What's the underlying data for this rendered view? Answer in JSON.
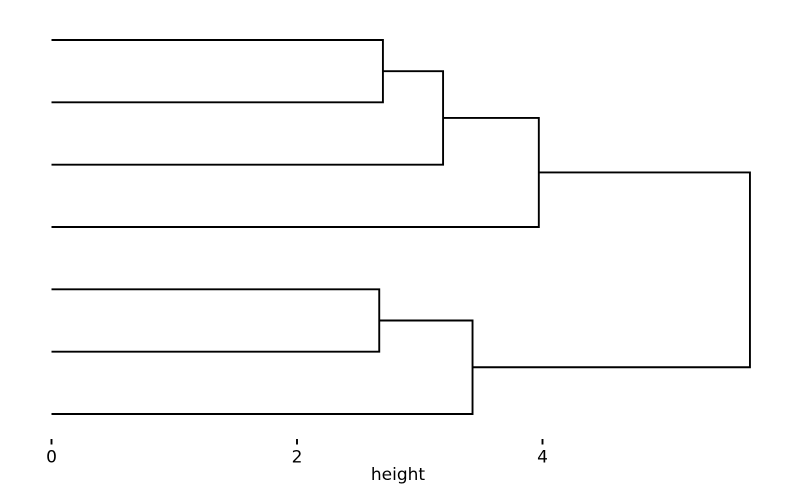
{
  "figure": {
    "background": "#ffffff",
    "line_color": "#000000",
    "text_color": "#000000"
  },
  "chart_data": {
    "type": "dendrogram",
    "orientation": "horizontal, leaves at left (height 0), root at right",
    "title": "",
    "xlabel": "height",
    "ylabel": "",
    "x_ticks": [
      0,
      2,
      4
    ],
    "xlim": [
      0,
      6.1
    ],
    "grid": false,
    "axis_line": false,
    "n_leaves": 7,
    "leaves_labeled": false,
    "merge_heights": [
      2.7,
      3.19,
      3.97,
      2.67,
      3.43,
      5.69
    ],
    "tree": {
      "height": 5.69,
      "children": [
        {
          "height": 3.97,
          "children": [
            {
              "height": 3.19,
              "children": [
                {
                  "height": 2.7,
                  "children": [
                    {
                      "leaf": true
                    },
                    {
                      "leaf": true
                    }
                  ]
                },
                {
                  "leaf": true
                }
              ]
            },
            {
              "leaf": true
            }
          ]
        },
        {
          "height": 3.43,
          "children": [
            {
              "height": 2.67,
              "children": [
                {
                  "leaf": true
                },
                {
                  "leaf": true
                }
              ]
            },
            {
              "leaf": true
            }
          ]
        }
      ]
    }
  }
}
